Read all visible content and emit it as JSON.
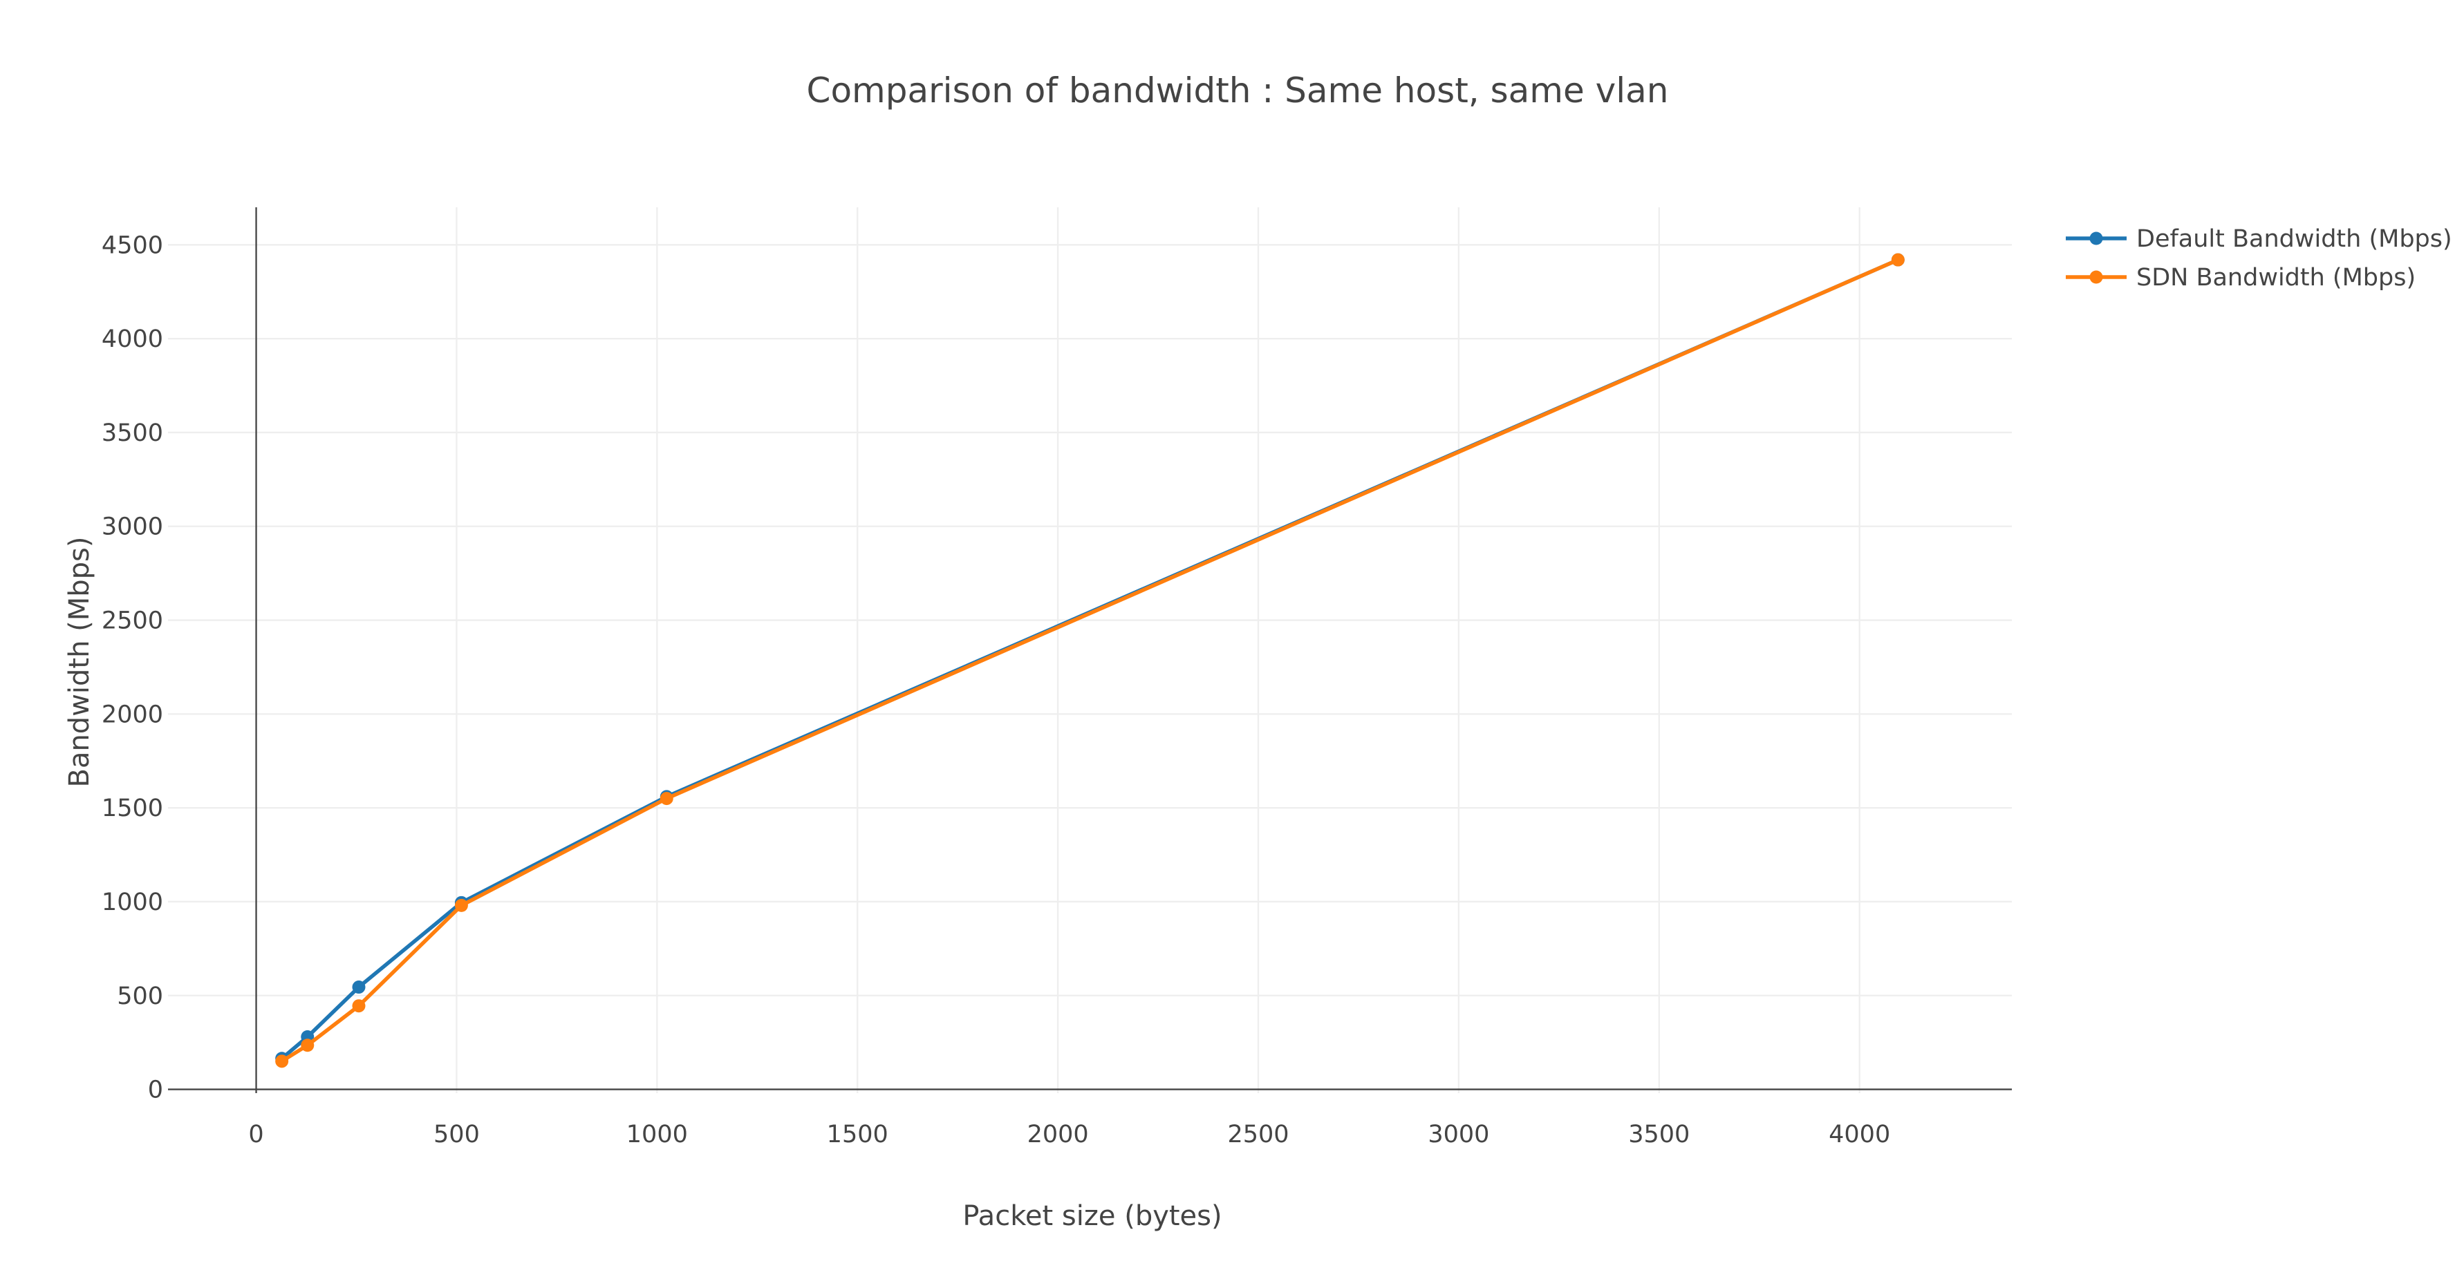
{
  "chart_data": {
    "type": "line",
    "title": "Comparison of bandwidth : Same host, same vlan",
    "xlabel": "Packet size (bytes)",
    "ylabel": "Bandwidth (Mbps)",
    "xlim": [
      -220,
      4380
    ],
    "ylim": [
      -20,
      4700
    ],
    "xticks": [
      0,
      500,
      1000,
      1500,
      2000,
      2500,
      3000,
      3500,
      4000
    ],
    "yticks": [
      0,
      500,
      1000,
      1500,
      2000,
      2500,
      3000,
      3500,
      4000,
      4500
    ],
    "grid": true,
    "legend_position": "top-right",
    "series": [
      {
        "name": "Default Bandwidth (Mbps)",
        "color": "#1f77b4",
        "x": [
          64,
          128,
          256,
          512,
          1024,
          4096
        ],
        "y": [
          165,
          280,
          545,
          995,
          1560,
          4420
        ]
      },
      {
        "name": "SDN Bandwidth (Mbps)",
        "color": "#ff7f0e",
        "x": [
          64,
          128,
          256,
          512,
          1024,
          4096
        ],
        "y": [
          150,
          235,
          445,
          980,
          1550,
          4420
        ]
      }
    ]
  }
}
